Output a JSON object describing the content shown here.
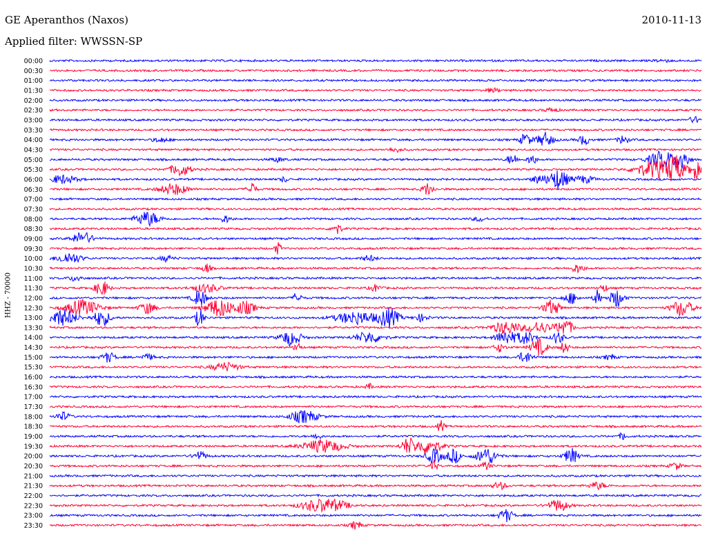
{
  "header": {
    "station": "GE Aperanthos (Naxos)",
    "date": "2010-11-13",
    "filter": "Applied filter: WWSSN-SP",
    "channel_label": "HHZ - 70000"
  },
  "colors": {
    "trace_a": "#0000ff",
    "trace_b": "#ff0033",
    "background": "#ffffff"
  },
  "chart_data": {
    "type": "line",
    "title": "GE Aperanthos (Naxos)",
    "subtitle": "Applied filter: WWSSN-SP",
    "ylabel": "HHZ - 70000",
    "xlabel": "",
    "rows": [
      {
        "label": "00:00",
        "events": [
          [
            0.94,
            0.2,
            0.01
          ]
        ]
      },
      {
        "label": "00:30",
        "events": []
      },
      {
        "label": "01:00",
        "events": []
      },
      {
        "label": "01:30",
        "events": [
          [
            0.68,
            0.25,
            0.01
          ]
        ]
      },
      {
        "label": "02:00",
        "events": []
      },
      {
        "label": "02:30",
        "events": [
          [
            0.77,
            0.25,
            0.01
          ]
        ]
      },
      {
        "label": "03:00",
        "events": [
          [
            0.99,
            0.4,
            0.01
          ]
        ]
      },
      {
        "label": "03:30",
        "events": []
      },
      {
        "label": "04:00",
        "events": [
          [
            0.17,
            0.3,
            0.012
          ],
          [
            0.73,
            0.9,
            0.008
          ],
          [
            0.76,
            1.0,
            0.012
          ],
          [
            0.82,
            0.7,
            0.008
          ],
          [
            0.88,
            0.6,
            0.008
          ]
        ]
      },
      {
        "label": "04:30",
        "events": [
          [
            0.53,
            0.3,
            0.01
          ]
        ]
      },
      {
        "label": "05:00",
        "events": [
          [
            0.35,
            0.3,
            0.01
          ],
          [
            0.71,
            0.7,
            0.008
          ],
          [
            0.74,
            0.8,
            0.006
          ],
          [
            0.94,
            1.2,
            0.02
          ],
          [
            0.97,
            1.5,
            0.01
          ]
        ]
      },
      {
        "label": "05:30",
        "events": [
          [
            0.2,
            0.9,
            0.015
          ],
          [
            0.93,
            1.2,
            0.03
          ],
          [
            0.96,
            1.6,
            0.012
          ],
          [
            0.99,
            1.3,
            0.008
          ]
        ]
      },
      {
        "label": "06:00",
        "events": [
          [
            0.02,
            0.6,
            0.02
          ],
          [
            0.36,
            0.4,
            0.005
          ],
          [
            0.75,
            0.6,
            0.01
          ],
          [
            0.78,
            1.4,
            0.015
          ],
          [
            0.82,
            0.5,
            0.015
          ]
        ]
      },
      {
        "label": "06:30",
        "events": [
          [
            0.19,
            0.8,
            0.02
          ],
          [
            0.31,
            1.0,
            0.006
          ],
          [
            0.58,
            0.9,
            0.008
          ]
        ]
      },
      {
        "label": "07:00",
        "events": []
      },
      {
        "label": "07:30",
        "events": []
      },
      {
        "label": "08:00",
        "events": [
          [
            0.15,
            1.0,
            0.018
          ],
          [
            0.27,
            0.5,
            0.008
          ],
          [
            0.66,
            0.3,
            0.01
          ]
        ]
      },
      {
        "label": "08:30",
        "events": [
          [
            0.44,
            0.8,
            0.007
          ]
        ]
      },
      {
        "label": "09:00",
        "events": [
          [
            0.05,
            0.9,
            0.015
          ]
        ]
      },
      {
        "label": "09:30",
        "events": [
          [
            0.35,
            0.8,
            0.005
          ]
        ]
      },
      {
        "label": "10:00",
        "events": [
          [
            0.03,
            0.8,
            0.018
          ],
          [
            0.18,
            0.4,
            0.01
          ],
          [
            0.49,
            0.4,
            0.01
          ]
        ]
      },
      {
        "label": "10:30",
        "events": [
          [
            0.24,
            0.7,
            0.006
          ],
          [
            0.81,
            0.6,
            0.01
          ]
        ]
      },
      {
        "label": "11:00",
        "events": [
          [
            0.04,
            0.4,
            0.01
          ]
        ]
      },
      {
        "label": "11:30",
        "events": [
          [
            0.08,
            1.1,
            0.01
          ],
          [
            0.24,
            0.6,
            0.02
          ],
          [
            0.5,
            0.5,
            0.008
          ],
          [
            0.85,
            0.5,
            0.006
          ]
        ]
      },
      {
        "label": "12:00",
        "events": [
          [
            0.23,
            1.2,
            0.01
          ],
          [
            0.38,
            1.0,
            0.005
          ],
          [
            0.8,
            0.8,
            0.01
          ],
          [
            0.84,
            1.2,
            0.005
          ],
          [
            0.87,
            1.3,
            0.01
          ]
        ]
      },
      {
        "label": "12:30",
        "events": [
          [
            0.05,
            1.1,
            0.025
          ],
          [
            0.15,
            0.8,
            0.012
          ],
          [
            0.26,
            1.3,
            0.02
          ],
          [
            0.3,
            0.9,
            0.015
          ],
          [
            0.77,
            1.1,
            0.012
          ],
          [
            0.97,
            1.2,
            0.015
          ]
        ]
      },
      {
        "label": "13:00",
        "events": [
          [
            0.02,
            1.2,
            0.02
          ],
          [
            0.08,
            1.2,
            0.012
          ],
          [
            0.23,
            1.4,
            0.006
          ],
          [
            0.47,
            0.9,
            0.03
          ],
          [
            0.52,
            1.4,
            0.015
          ],
          [
            0.57,
            0.5,
            0.01
          ]
        ]
      },
      {
        "label": "13:30",
        "events": [
          [
            0.7,
            0.9,
            0.02
          ],
          [
            0.75,
            0.8,
            0.02
          ],
          [
            0.79,
            1.2,
            0.012
          ]
        ]
      },
      {
        "label": "14:00",
        "events": [
          [
            0.37,
            1.1,
            0.015
          ],
          [
            0.49,
            0.8,
            0.02
          ],
          [
            0.7,
            1.0,
            0.015
          ],
          [
            0.73,
            0.9,
            0.012
          ],
          [
            0.78,
            0.9,
            0.008
          ]
        ]
      },
      {
        "label": "14:30",
        "events": [
          [
            0.38,
            0.7,
            0.005
          ],
          [
            0.69,
            0.6,
            0.008
          ],
          [
            0.75,
            1.2,
            0.012
          ],
          [
            0.79,
            0.9,
            0.006
          ]
        ]
      },
      {
        "label": "15:00",
        "events": [
          [
            0.09,
            0.7,
            0.01
          ],
          [
            0.15,
            0.4,
            0.01
          ],
          [
            0.73,
            0.8,
            0.01
          ],
          [
            0.86,
            0.4,
            0.008
          ]
        ]
      },
      {
        "label": "15:30",
        "events": [
          [
            0.27,
            0.6,
            0.02
          ]
        ]
      },
      {
        "label": "16:00",
        "events": []
      },
      {
        "label": "16:30",
        "events": [
          [
            0.49,
            0.4,
            0.005
          ]
        ]
      },
      {
        "label": "17:00",
        "events": []
      },
      {
        "label": "17:30",
        "events": []
      },
      {
        "label": "18:00",
        "events": [
          [
            0.02,
            0.6,
            0.01
          ],
          [
            0.39,
            0.9,
            0.02
          ]
        ]
      },
      {
        "label": "18:30",
        "events": [
          [
            0.6,
            0.8,
            0.005
          ]
        ]
      },
      {
        "label": "19:00",
        "events": [
          [
            0.41,
            0.6,
            0.005
          ],
          [
            0.88,
            0.6,
            0.005
          ]
        ]
      },
      {
        "label": "19:30",
        "events": [
          [
            0.42,
            0.9,
            0.03
          ],
          [
            0.55,
            1.1,
            0.01
          ],
          [
            0.58,
            1.0,
            0.02
          ]
        ]
      },
      {
        "label": "20:00",
        "events": [
          [
            0.23,
            0.6,
            0.01
          ],
          [
            0.59,
            1.0,
            0.012
          ],
          [
            0.62,
            1.0,
            0.01
          ],
          [
            0.67,
            1.2,
            0.015
          ],
          [
            0.8,
            1.1,
            0.01
          ]
        ]
      },
      {
        "label": "20:30",
        "events": [
          [
            0.59,
            0.8,
            0.005
          ],
          [
            0.67,
            0.6,
            0.006
          ],
          [
            0.96,
            0.5,
            0.008
          ]
        ]
      },
      {
        "label": "21:00",
        "events": []
      },
      {
        "label": "21:30",
        "events": [
          [
            0.69,
            0.5,
            0.01
          ],
          [
            0.84,
            0.5,
            0.012
          ]
        ]
      },
      {
        "label": "22:00",
        "events": []
      },
      {
        "label": "22:30",
        "events": [
          [
            0.41,
            0.8,
            0.025
          ],
          [
            0.44,
            0.6,
            0.02
          ],
          [
            0.78,
            0.8,
            0.015
          ]
        ]
      },
      {
        "label": "23:00",
        "events": [
          [
            0.7,
            0.9,
            0.01
          ]
        ]
      },
      {
        "label": "23:30",
        "events": [
          [
            0.47,
            0.6,
            0.008
          ]
        ]
      }
    ]
  }
}
